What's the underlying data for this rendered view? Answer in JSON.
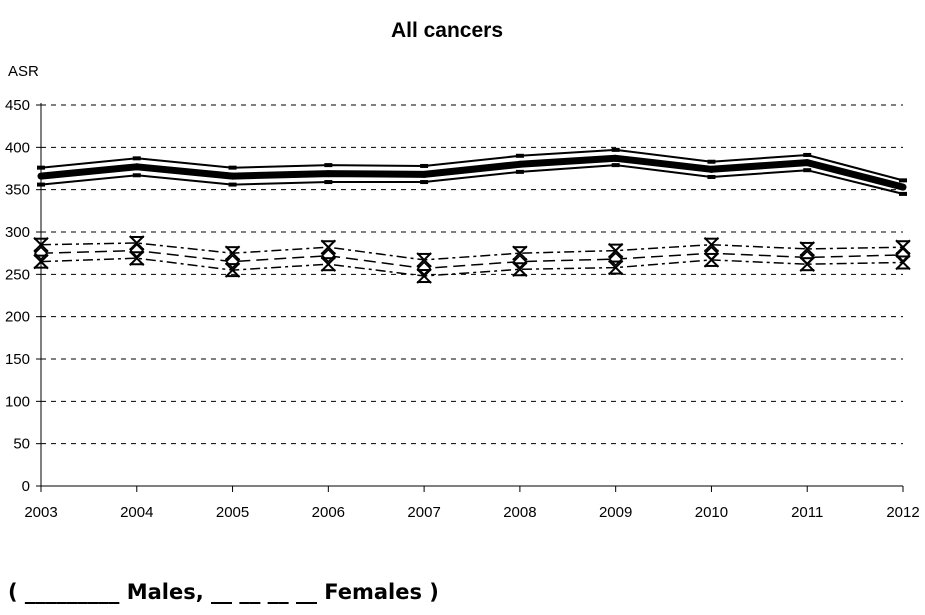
{
  "chart_data": {
    "type": "line",
    "title": "All cancers",
    "ylabel": "ASR",
    "xlabel": "",
    "x": [
      2003,
      2004,
      2005,
      2006,
      2007,
      2008,
      2009,
      2010,
      2011,
      2012
    ],
    "yticks": [
      0,
      50,
      100,
      150,
      200,
      250,
      300,
      350,
      400,
      450
    ],
    "ylim": [
      0,
      450
    ],
    "grid": "horizontal-dashed",
    "legend": "none",
    "series": [
      {
        "group": "Males",
        "role": "upper",
        "style": "solid-thin",
        "marker": "dash",
        "values": [
          376,
          387,
          376,
          379,
          378,
          390,
          397,
          383,
          391,
          361
        ]
      },
      {
        "group": "Males",
        "role": "estimate",
        "style": "solid-thick",
        "marker": "none",
        "values": [
          366,
          377,
          366,
          369,
          368,
          380,
          387,
          374,
          382,
          353
        ]
      },
      {
        "group": "Males",
        "role": "lower",
        "style": "solid-thin",
        "marker": "dash",
        "values": [
          356,
          367,
          356,
          359,
          359,
          371,
          379,
          365,
          373,
          345
        ]
      },
      {
        "group": "Females",
        "role": "upper",
        "style": "dash-dot",
        "marker": "asterisk",
        "values": [
          285,
          287,
          275,
          282,
          267,
          275,
          278,
          285,
          280,
          282
        ]
      },
      {
        "group": "Females",
        "role": "estimate",
        "style": "dashed",
        "marker": "diamond",
        "values": [
          275,
          278,
          265,
          272,
          257,
          265,
          268,
          275,
          270,
          273
        ]
      },
      {
        "group": "Females",
        "role": "lower",
        "style": "dash-dot",
        "marker": "asterisk",
        "values": [
          265,
          269,
          255,
          262,
          248,
          256,
          258,
          267,
          262,
          264
        ]
      }
    ],
    "caption": "( _________ Males, __ __ __ __ Females )"
  },
  "colors": {
    "ink": "#000000",
    "background": "#ffffff"
  }
}
